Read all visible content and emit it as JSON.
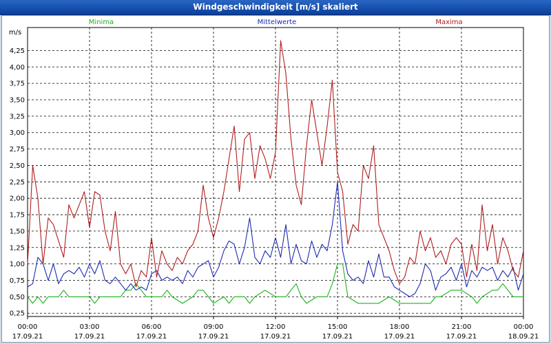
{
  "window": {
    "title": "Windgeschwindigkeit [m/s] skaliert"
  },
  "chart_data": {
    "type": "line",
    "title": "Windgeschwindigkeit [m/s] skaliert",
    "ylabel": "m/s",
    "ylim": [
      0.2,
      4.6
    ],
    "yticks": [
      0.25,
      0.5,
      0.75,
      1.0,
      1.25,
      1.5,
      1.75,
      2.0,
      2.25,
      2.5,
      2.75,
      3.0,
      3.25,
      3.5,
      3.75,
      4.0,
      4.25
    ],
    "ytick_labels": [
      "0,25",
      "0,50",
      "0,75",
      "1,00",
      "1,25",
      "1,50",
      "1,75",
      "2,00",
      "2,25",
      "2,50",
      "2,75",
      "3,00",
      "3,25",
      "3,50",
      "3,75",
      "4,00",
      "4,25"
    ],
    "xlim": [
      0,
      24
    ],
    "xticks": [
      0,
      3,
      6,
      9,
      12,
      15,
      18,
      21,
      24
    ],
    "xtick_labels": [
      {
        "time": "00:00",
        "date": "17.09.21"
      },
      {
        "time": "03:00",
        "date": "17.09.21"
      },
      {
        "time": "06:00",
        "date": "17.09.21"
      },
      {
        "time": "09:00",
        "date": "17.09.21"
      },
      {
        "time": "12:00",
        "date": "17.09.21"
      },
      {
        "time": "15:00",
        "date": "17.09.21"
      },
      {
        "time": "18:00",
        "date": "17.09.21"
      },
      {
        "time": "21:00",
        "date": "17.09.21"
      },
      {
        "time": "00:00",
        "date": "18.09.21"
      }
    ],
    "grid": true,
    "series": [
      {
        "name": "Minima",
        "color": "#19b219",
        "x": [
          0,
          0.25,
          0.5,
          0.75,
          1,
          1.5,
          1.75,
          2,
          2.5,
          3,
          3.25,
          3.5,
          4,
          4.5,
          4.75,
          5,
          5.25,
          5.5,
          5.75,
          6,
          6.5,
          6.75,
          7,
          7.5,
          8,
          8.25,
          8.5,
          8.75,
          9,
          9.5,
          9.75,
          10,
          10.5,
          10.75,
          11,
          11.5,
          12,
          12.5,
          13,
          13.25,
          13.5,
          14,
          14.5,
          14.75,
          15,
          15.25,
          15.5,
          16,
          16.5,
          17,
          17.5,
          18,
          18.5,
          19,
          19.5,
          19.75,
          20,
          20.5,
          21,
          21.5,
          21.75,
          22,
          22.5,
          22.75,
          23,
          23.5,
          24
        ],
        "y": [
          0.5,
          0.4,
          0.5,
          0.4,
          0.5,
          0.5,
          0.6,
          0.5,
          0.5,
          0.5,
          0.4,
          0.5,
          0.5,
          0.5,
          0.6,
          0.6,
          0.7,
          0.6,
          0.5,
          0.5,
          0.5,
          0.6,
          0.5,
          0.4,
          0.5,
          0.6,
          0.6,
          0.5,
          0.4,
          0.5,
          0.4,
          0.5,
          0.5,
          0.4,
          0.5,
          0.6,
          0.5,
          0.5,
          0.7,
          0.5,
          0.4,
          0.5,
          0.5,
          0.7,
          1.0,
          1.0,
          0.5,
          0.4,
          0.4,
          0.4,
          0.5,
          0.4,
          0.4,
          0.4,
          0.4,
          0.5,
          0.5,
          0.6,
          0.6,
          0.5,
          0.4,
          0.5,
          0.6,
          0.6,
          0.7,
          0.5,
          0.5
        ]
      },
      {
        "name": "Mittelwerte",
        "color": "#1c2ab0",
        "x": [
          0,
          0.25,
          0.5,
          0.75,
          1,
          1.25,
          1.5,
          1.75,
          2,
          2.25,
          2.5,
          2.75,
          3,
          3.25,
          3.5,
          3.75,
          4,
          4.25,
          4.5,
          4.75,
          5,
          5.25,
          5.5,
          5.75,
          6,
          6.25,
          6.5,
          6.75,
          7,
          7.25,
          7.5,
          7.75,
          8,
          8.25,
          8.5,
          8.75,
          9,
          9.25,
          9.5,
          9.75,
          10,
          10.25,
          10.5,
          10.75,
          11,
          11.25,
          11.5,
          11.75,
          12,
          12.25,
          12.5,
          12.75,
          13,
          13.25,
          13.5,
          13.75,
          14,
          14.25,
          14.5,
          14.75,
          15,
          15.25,
          15.5,
          15.75,
          16,
          16.25,
          16.5,
          16.75,
          17,
          17.25,
          17.5,
          17.75,
          18,
          18.25,
          18.5,
          18.75,
          19,
          19.25,
          19.5,
          19.75,
          20,
          20.25,
          20.5,
          20.75,
          21,
          21.25,
          21.5,
          21.75,
          22,
          22.25,
          22.5,
          22.75,
          23,
          23.25,
          23.5,
          23.75,
          24
        ],
        "y": [
          0.65,
          0.7,
          1.1,
          1.0,
          0.75,
          1.0,
          0.7,
          0.85,
          0.9,
          0.85,
          0.95,
          0.8,
          1.0,
          0.85,
          1.05,
          0.75,
          0.7,
          0.8,
          0.7,
          0.6,
          0.7,
          0.6,
          0.65,
          0.6,
          0.85,
          0.9,
          0.75,
          0.8,
          0.75,
          0.8,
          0.7,
          0.9,
          0.8,
          0.95,
          1.0,
          1.05,
          0.8,
          0.95,
          1.2,
          1.35,
          1.3,
          1.0,
          1.25,
          1.7,
          1.1,
          1.0,
          1.2,
          1.1,
          1.4,
          1.1,
          1.6,
          1.0,
          1.3,
          1.05,
          1.0,
          1.35,
          1.1,
          1.3,
          1.2,
          1.6,
          2.25,
          1.2,
          0.85,
          0.75,
          0.8,
          0.7,
          1.05,
          0.8,
          1.15,
          0.8,
          0.8,
          0.65,
          0.6,
          0.55,
          0.5,
          0.55,
          0.7,
          1.0,
          0.9,
          0.6,
          0.8,
          0.85,
          0.95,
          0.75,
          1.0,
          0.65,
          0.9,
          0.8,
          0.95,
          0.9,
          0.95,
          0.75,
          0.9,
          0.8,
          0.95,
          0.6,
          0.85
        ]
      },
      {
        "name": "Maxima",
        "color": "#b01c1c",
        "x": [
          0,
          0.25,
          0.5,
          0.75,
          1,
          1.25,
          1.5,
          1.75,
          2,
          2.25,
          2.5,
          2.75,
          3,
          3.25,
          3.5,
          3.75,
          4,
          4.25,
          4.5,
          4.75,
          5,
          5.25,
          5.5,
          5.75,
          6,
          6.25,
          6.5,
          6.75,
          7,
          7.25,
          7.5,
          7.75,
          8,
          8.25,
          8.5,
          8.75,
          9,
          9.25,
          9.5,
          9.75,
          10,
          10.25,
          10.5,
          10.75,
          11,
          11.25,
          11.5,
          11.75,
          12,
          12.25,
          12.5,
          12.75,
          13,
          13.25,
          13.5,
          13.75,
          14,
          14.25,
          14.5,
          14.75,
          15,
          15.25,
          15.5,
          15.75,
          16,
          16.25,
          16.5,
          16.75,
          17,
          17.25,
          17.5,
          17.75,
          18,
          18.25,
          18.5,
          18.75,
          19,
          19.25,
          19.5,
          19.75,
          20,
          20.25,
          20.5,
          20.75,
          21,
          21.25,
          21.5,
          21.75,
          22,
          22.25,
          22.5,
          22.75,
          23,
          23.25,
          23.5,
          23.75,
          24
        ],
        "y": [
          1.0,
          2.5,
          2.0,
          1.0,
          1.7,
          1.6,
          1.35,
          1.1,
          1.9,
          1.7,
          1.9,
          2.1,
          1.55,
          2.1,
          2.05,
          1.5,
          1.2,
          1.8,
          1.0,
          0.85,
          1.0,
          0.65,
          0.9,
          0.8,
          1.4,
          0.8,
          1.2,
          1.0,
          0.9,
          1.1,
          1.0,
          1.2,
          1.3,
          1.5,
          2.2,
          1.7,
          1.4,
          1.7,
          2.1,
          2.6,
          3.1,
          2.1,
          2.9,
          3.0,
          2.3,
          2.8,
          2.6,
          2.3,
          2.7,
          4.4,
          3.9,
          2.9,
          2.2,
          1.9,
          2.8,
          3.5,
          3.0,
          2.5,
          3.1,
          3.8,
          2.4,
          2.1,
          1.3,
          1.6,
          1.5,
          2.5,
          2.3,
          2.8,
          1.6,
          1.4,
          1.2,
          0.9,
          0.7,
          0.8,
          1.1,
          1.0,
          1.5,
          1.2,
          1.4,
          1.1,
          1.2,
          1.0,
          1.3,
          1.4,
          1.3,
          0.8,
          1.3,
          0.9,
          1.9,
          1.2,
          1.6,
          1.0,
          1.4,
          1.2,
          0.9,
          0.8,
          1.2
        ]
      }
    ]
  }
}
